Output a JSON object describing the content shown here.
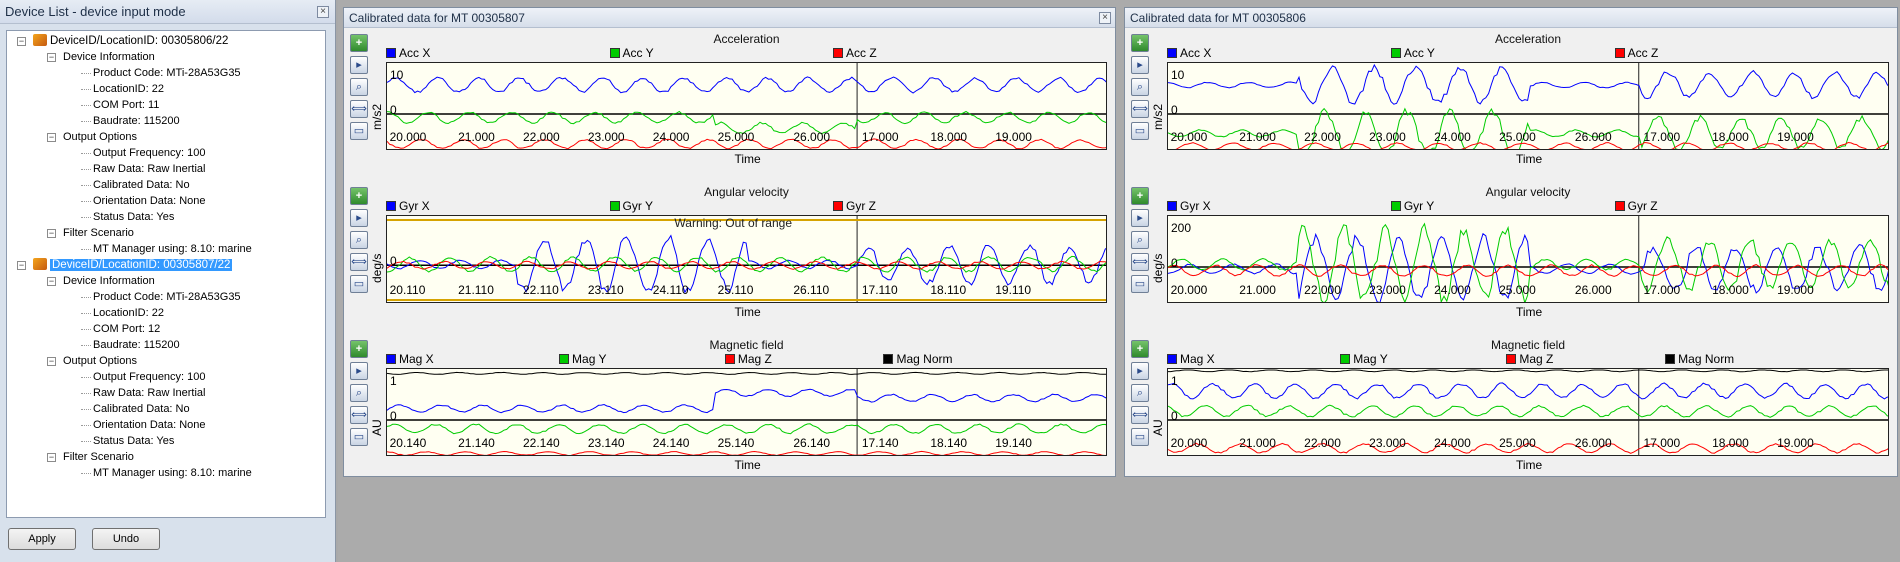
{
  "device_panel": {
    "title": "Device List - device input mode",
    "devices": [
      {
        "name": "DeviceID/LocationID: 00305806/22",
        "selected": false,
        "info_label": "Device Information",
        "info": [
          "Product Code: MTi-28A53G35",
          "LocationID: 22",
          "COM Port: 11",
          "Baudrate: 115200"
        ],
        "options_label": "Output Options",
        "options": [
          "Output Frequency: 100",
          "Raw Data: Raw Inertial",
          "Calibrated Data: No",
          "Orientation Data: None",
          "Status Data: Yes"
        ],
        "filter_label": "Filter Scenario",
        "filter": "MT Manager using: 8.10: marine"
      },
      {
        "name": "DeviceID/LocationID: 00305807/22",
        "selected": true,
        "info_label": "Device Information",
        "info": [
          "Product Code: MTi-28A53G35",
          "LocationID: 22",
          "COM Port: 12",
          "Baudrate: 115200"
        ],
        "options_label": "Output Options",
        "options": [
          "Output Frequency: 100",
          "Raw Data: Raw Inertial",
          "Calibrated Data: No",
          "Orientation Data: None",
          "Status Data: Yes"
        ],
        "filter_label": "Filter Scenario",
        "filter": "MT Manager using: 8.10: marine"
      }
    ],
    "buttons": {
      "apply": "Apply",
      "undo": "Undo"
    }
  },
  "windows": [
    {
      "title": "Calibrated data for MT 00305807",
      "plots": [
        {
          "title": "Acceleration",
          "ylabel": "m/s2",
          "legend": [
            {
              "name": "Acc X",
              "color": "#0000ff"
            },
            {
              "name": "Acc Y",
              "color": "#00cc00"
            },
            {
              "name": "Acc Z",
              "color": "#ff0000"
            }
          ],
          "yticks": [
            "10",
            "0"
          ],
          "xticks": [
            "20.000",
            "21.000",
            "22.000",
            "23.000",
            "24.000",
            "25.000",
            "26.000",
            "17.000",
            "18.000",
            "19.000"
          ],
          "xlabel": "Time",
          "warning": ""
        },
        {
          "title": "Angular velocity",
          "ylabel": "deg/s",
          "legend": [
            {
              "name": "Gyr X",
              "color": "#0000ff"
            },
            {
              "name": "Gyr Y",
              "color": "#00cc00"
            },
            {
              "name": "Gyr Z",
              "color": "#ff0000"
            }
          ],
          "yticks": [
            "0"
          ],
          "xticks": [
            "20.110",
            "21.110",
            "22.110",
            "23.110",
            "24.110",
            "25.110",
            "26.110",
            "17.110",
            "18.110",
            "19.110"
          ],
          "xlabel": "Time",
          "warning": "Warning: Out of range"
        },
        {
          "title": "Magnetic field",
          "ylabel": "AU",
          "legend": [
            {
              "name": "Mag X",
              "color": "#0000ff"
            },
            {
              "name": "Mag Y",
              "color": "#00cc00"
            },
            {
              "name": "Mag Z",
              "color": "#ff0000"
            },
            {
              "name": "Mag Norm",
              "color": "#000000"
            }
          ],
          "yticks": [
            "1",
            "0"
          ],
          "xticks": [
            "20.140",
            "21.140",
            "22.140",
            "23.140",
            "24.140",
            "25.140",
            "26.140",
            "17.140",
            "18.140",
            "19.140"
          ],
          "xlabel": "Time",
          "warning": ""
        }
      ]
    },
    {
      "title": "Calibrated data for MT 00305806",
      "plots": [
        {
          "title": "Acceleration",
          "ylabel": "m/s2",
          "legend": [
            {
              "name": "Acc X",
              "color": "#0000ff"
            },
            {
              "name": "Acc Y",
              "color": "#00cc00"
            },
            {
              "name": "Acc Z",
              "color": "#ff0000"
            }
          ],
          "yticks": [
            "10",
            "0"
          ],
          "xticks": [
            "20.000",
            "21.000",
            "22.000",
            "23.000",
            "24.000",
            "25.000",
            "26.000",
            "17.000",
            "18.000",
            "19.000"
          ],
          "xlabel": "Time",
          "warning": ""
        },
        {
          "title": "Angular velocity",
          "ylabel": "deg/s",
          "legend": [
            {
              "name": "Gyr X",
              "color": "#0000ff"
            },
            {
              "name": "Gyr Y",
              "color": "#00cc00"
            },
            {
              "name": "Gyr Z",
              "color": "#ff0000"
            }
          ],
          "yticks": [
            "200",
            "0"
          ],
          "xticks": [
            "20.000",
            "21.000",
            "22.000",
            "23.000",
            "24.000",
            "25.000",
            "26.000",
            "17.000",
            "18.000",
            "19.000"
          ],
          "xlabel": "Time",
          "warning": ""
        },
        {
          "title": "Magnetic field",
          "ylabel": "AU",
          "legend": [
            {
              "name": "Mag X",
              "color": "#0000ff"
            },
            {
              "name": "Mag Y",
              "color": "#00cc00"
            },
            {
              "name": "Mag Z",
              "color": "#ff0000"
            },
            {
              "name": "Mag Norm",
              "color": "#000000"
            }
          ],
          "yticks": [
            "1",
            "0"
          ],
          "xticks": [
            "20.000",
            "21.000",
            "22.000",
            "23.000",
            "24.000",
            "25.000",
            "26.000",
            "17.000",
            "18.000",
            "19.000"
          ],
          "xlabel": "Time",
          "warning": ""
        }
      ]
    }
  ],
  "toolbar_icons": [
    "add-plot-icon",
    "play-icon",
    "zoom-icon",
    "pan-icon",
    "stop-icon"
  ]
}
